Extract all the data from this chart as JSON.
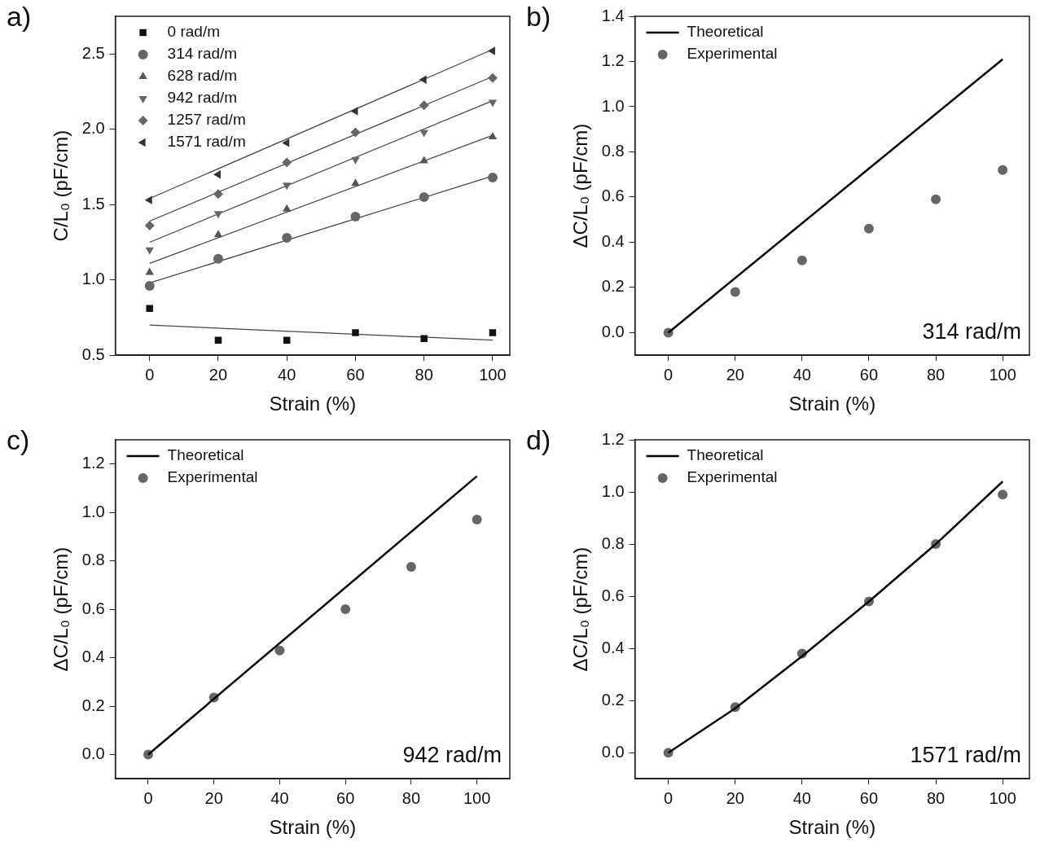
{
  "chart_data": [
    {
      "type": "scatter",
      "xlabel": "Strain (%)",
      "ylabel": "C/L₀ (pF/cm)",
      "annotations": [
        "a)"
      ],
      "x": [
        0,
        20,
        40,
        60,
        80,
        100
      ],
      "xlim": [
        -10,
        105
      ],
      "ylim": [
        0.5,
        2.75
      ],
      "xticks": [
        0,
        20,
        40,
        60,
        80,
        100
      ],
      "yticks": [
        0.5,
        {
          "value": 1,
          "label": "1.0"
        },
        1.5,
        {
          "value": 2,
          "label": "2.0"
        },
        2.5
      ],
      "legend": "top left",
      "grid": false,
      "series": [
        {
          "name": "0 rad/m",
          "color": "#111111",
          "marker": "square",
          "values": [
            0.81,
            0.6,
            0.6,
            0.65,
            0.61,
            0.65
          ]
        },
        {
          "name": "314 rad/m",
          "color": "#666666",
          "marker": "circle",
          "values": [
            0.96,
            1.14,
            1.28,
            1.42,
            1.55,
            1.68
          ]
        },
        {
          "name": "628 rad/m",
          "color": "#555555",
          "marker": "triangle",
          "values": [
            1.05,
            1.3,
            1.47,
            1.64,
            1.79,
            1.95
          ]
        },
        {
          "name": "942 rad/m",
          "color": "#666666",
          "marker": "triangle-down",
          "values": [
            1.2,
            1.44,
            1.63,
            1.8,
            1.98,
            2.18
          ]
        },
        {
          "name": "1257 rad/m",
          "color": "#666666",
          "marker": "diamond",
          "values": [
            1.36,
            1.57,
            1.78,
            1.98,
            2.16,
            2.34
          ]
        },
        {
          "name": "1571 rad/m",
          "color": "#333333",
          "marker": "triangle-left",
          "values": [
            1.53,
            1.7,
            1.91,
            2.12,
            2.33,
            2.52
          ]
        },
        {
          "type": "line",
          "color": "#444444",
          "x": [
            0,
            100
          ],
          "values": [
            0.7,
            0.6
          ]
        },
        {
          "type": "line",
          "color": "#444444",
          "x": [
            0,
            100
          ],
          "values": [
            0.98,
            1.69
          ]
        },
        {
          "type": "line",
          "color": "#444444",
          "x": [
            0,
            100
          ],
          "values": [
            1.11,
            1.96
          ]
        },
        {
          "type": "line",
          "color": "#444444",
          "x": [
            0,
            100
          ],
          "values": [
            1.25,
            2.19
          ]
        },
        {
          "type": "line",
          "color": "#444444",
          "x": [
            0,
            100
          ],
          "values": [
            1.39,
            2.35
          ]
        },
        {
          "type": "line",
          "color": "#444444",
          "x": [
            0,
            100
          ],
          "values": [
            1.54,
            2.53
          ]
        }
      ]
    },
    {
      "type": "scatter",
      "xlabel": "Strain (%)",
      "ylabel": "ΔC/L₀ (pF/cm)",
      "annotations": [
        "b)",
        "314 rad/m"
      ],
      "x": [
        0,
        20,
        40,
        60,
        80,
        100
      ],
      "xlim": [
        -10,
        108
      ],
      "ylim": [
        -0.1,
        1.4
      ],
      "xticks": [
        0,
        20,
        40,
        60,
        80,
        100
      ],
      "yticks": [
        {
          "value": 0,
          "label": "0.0"
        },
        0.2,
        0.4,
        0.6,
        0.8,
        {
          "value": 1,
          "label": "1.0"
        },
        1.2,
        1.4
      ],
      "legend": "top left",
      "grid": false,
      "series": [
        {
          "name": "Theoretical",
          "type": "line",
          "color": "#000000",
          "x": [
            0,
            100
          ],
          "values": [
            0,
            1.21
          ]
        },
        {
          "name": "Experimental",
          "color": "#666666",
          "marker": "circle",
          "values": [
            0,
            0.18,
            0.32,
            0.46,
            0.59,
            0.72
          ]
        }
      ]
    },
    {
      "type": "scatter",
      "xlabel": "Strain (%)",
      "ylabel": "ΔC/L₀ (pF/cm)",
      "annotations": [
        "c)",
        "942 rad/m"
      ],
      "x": [
        0,
        20,
        40,
        60,
        80,
        100
      ],
      "xlim": [
        -10,
        110
      ],
      "ylim": [
        -0.1,
        1.3
      ],
      "xticks": [
        0,
        20,
        40,
        60,
        80,
        100
      ],
      "yticks": [
        {
          "value": 0,
          "label": "0.0"
        },
        0.2,
        0.4,
        0.6,
        0.8,
        {
          "value": 1,
          "label": "1.0"
        },
        1.2
      ],
      "legend": "top left",
      "grid": false,
      "series": [
        {
          "name": "Theoretical",
          "type": "line",
          "color": "#000000",
          "x": [
            0,
            100
          ],
          "values": [
            0,
            1.15
          ]
        },
        {
          "name": "Experimental",
          "color": "#666666",
          "marker": "circle",
          "values": [
            0,
            0.235,
            0.43,
            0.6,
            0.775,
            0.97
          ]
        }
      ]
    },
    {
      "type": "scatter",
      "xlabel": "Strain (%)",
      "ylabel": "ΔC/L₀ (pF/cm)",
      "annotations": [
        "d)",
        "1571 rad/m"
      ],
      "x": [
        0,
        20,
        40,
        60,
        80,
        100
      ],
      "xlim": [
        -10,
        108
      ],
      "ylim": [
        -0.1,
        1.2
      ],
      "xticks": [
        0,
        20,
        40,
        60,
        80,
        100
      ],
      "yticks": [
        {
          "value": 0,
          "label": "0.0"
        },
        0.2,
        0.4,
        0.6,
        0.8,
        {
          "value": 1,
          "label": "1.0"
        },
        1.2
      ],
      "legend": "top left",
      "grid": false,
      "series": [
        {
          "name": "Theoretical",
          "type": "line",
          "color": "#000000",
          "x": [
            0,
            20,
            40,
            60,
            80,
            100
          ],
          "values": [
            0,
            0.17,
            0.37,
            0.58,
            0.8,
            1.04
          ]
        },
        {
          "name": "Experimental",
          "color": "#666666",
          "marker": "circle",
          "values": [
            0,
            0.175,
            0.38,
            0.58,
            0.8,
            0.99
          ]
        }
      ]
    }
  ]
}
